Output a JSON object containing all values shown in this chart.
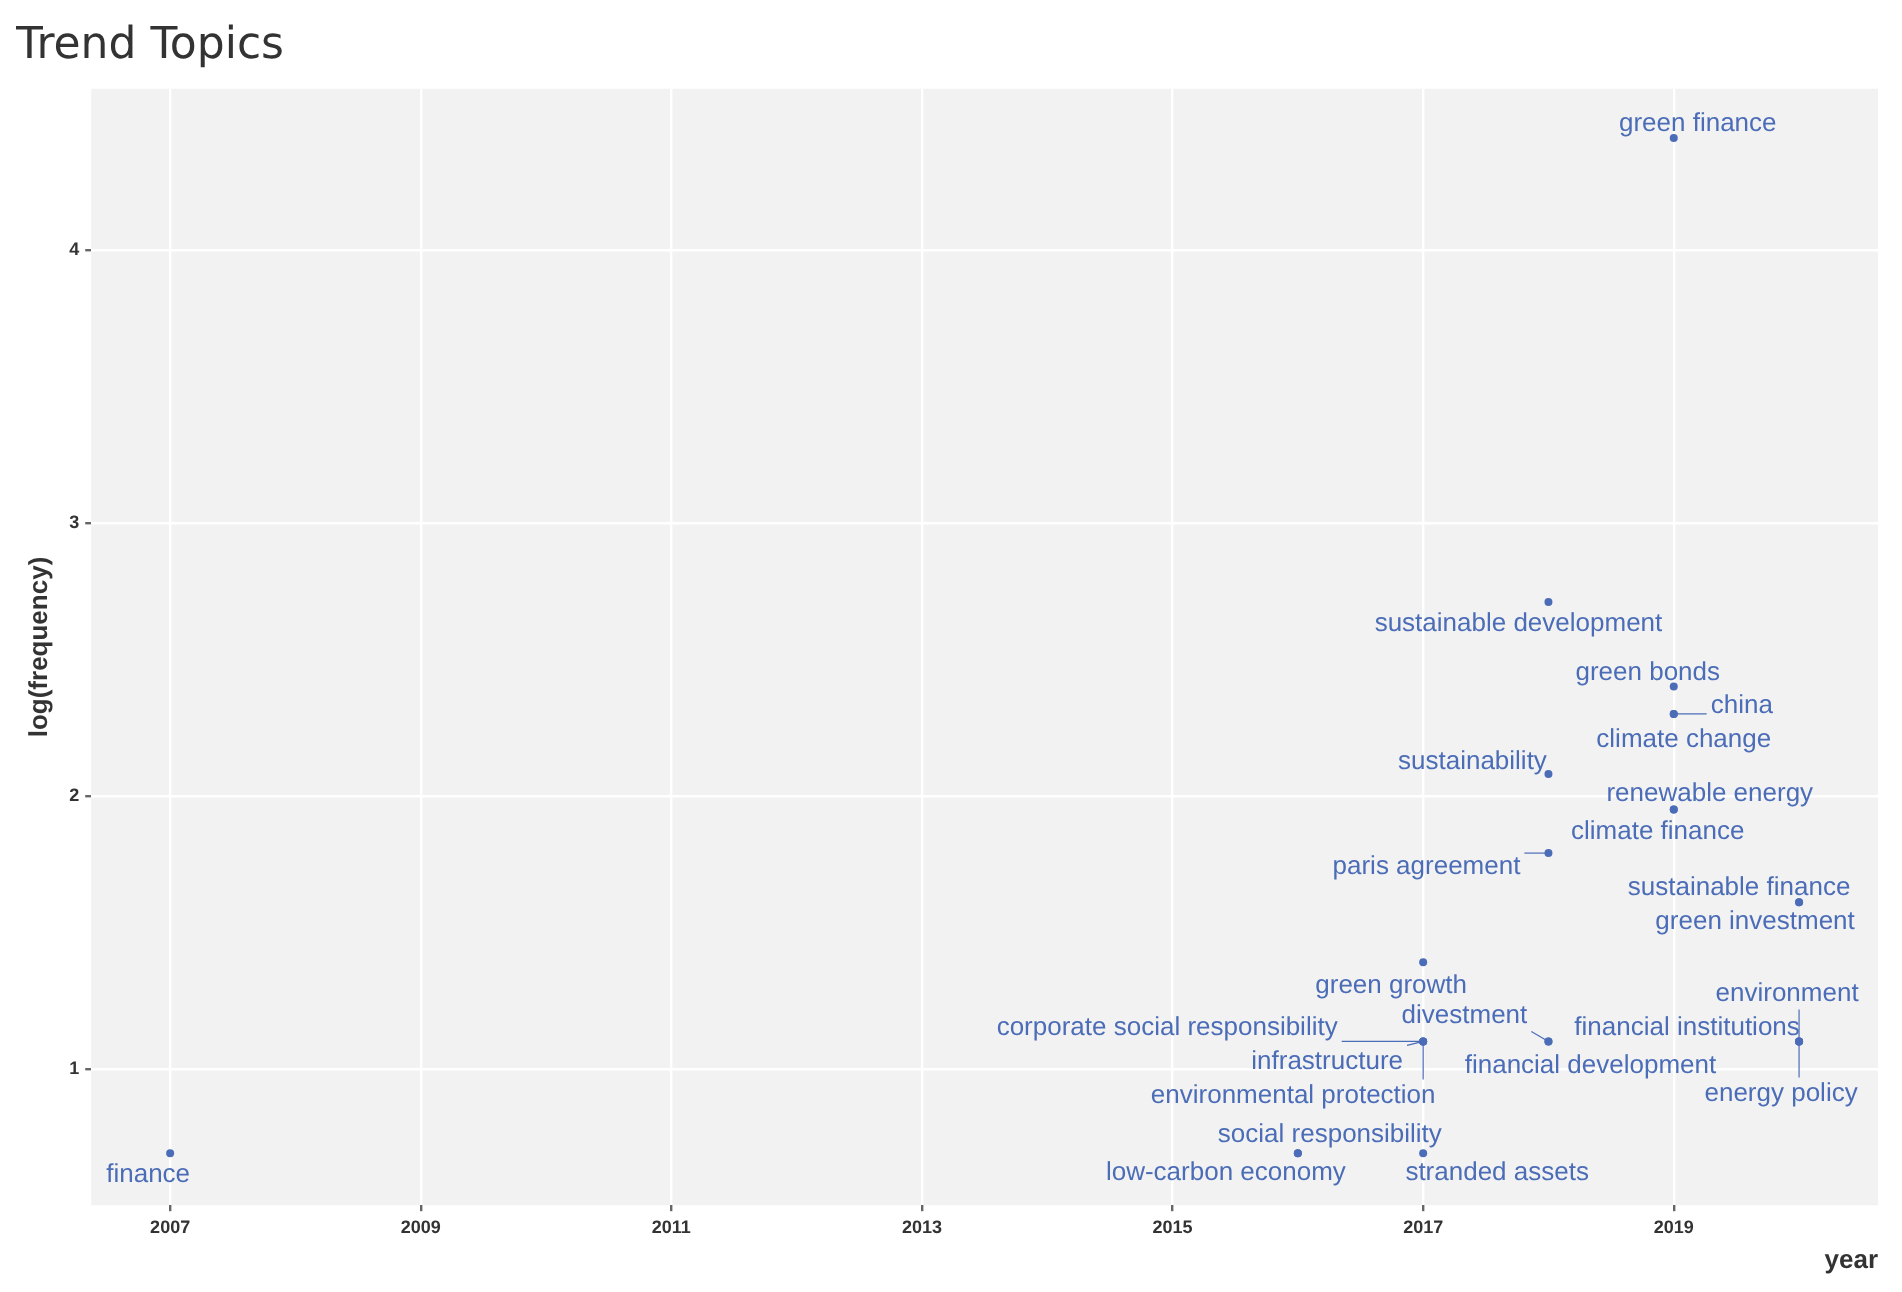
{
  "chart_data": {
    "type": "scatter",
    "title": "Trend Topics",
    "xlabel": "year",
    "ylabel": "log(frequency)",
    "xlim": [
      2006.37,
      2020.63
    ],
    "xticks": [
      2007,
      2009,
      2011,
      2013,
      2015,
      2017,
      2019
    ],
    "ylim": [
      0.5,
      4.59
    ],
    "yticks": [
      1,
      2,
      3,
      4
    ],
    "grid": true,
    "legend": false,
    "marker": "circle",
    "series": [
      {
        "color": "#4b6cb7",
        "x": [
          2007,
          2019,
          2018,
          2019,
          2019,
          2019,
          2018,
          2019,
          2019,
          2018,
          2020,
          2020,
          2017,
          2017,
          2017,
          2017,
          2018,
          2018,
          2020,
          2020,
          2020,
          2016,
          2016,
          2017
        ],
        "values": [
          0.69,
          4.41,
          2.71,
          2.4,
          2.3,
          2.3,
          2.08,
          1.95,
          1.95,
          1.79,
          1.61,
          1.61,
          1.39,
          1.1,
          1.1,
          1.1,
          1.1,
          1.1,
          1.1,
          1.1,
          1.1,
          0.69,
          0.69,
          0.69
        ],
        "value_labels": [
          "finance",
          "green finance",
          "sustainable development",
          "green bonds",
          "china",
          "climate change",
          "sustainability",
          "renewable energy",
          "climate finance",
          "paris agreement",
          "sustainable finance",
          "green investment",
          "green growth",
          "corporate social responsibility",
          "infrastructure",
          "environmental protection",
          "divestment",
          "financial development",
          "environment",
          "financial institutions",
          "energy policy",
          "social responsibility",
          "low-carbon economy",
          "stranded assets"
        ]
      }
    ]
  }
}
